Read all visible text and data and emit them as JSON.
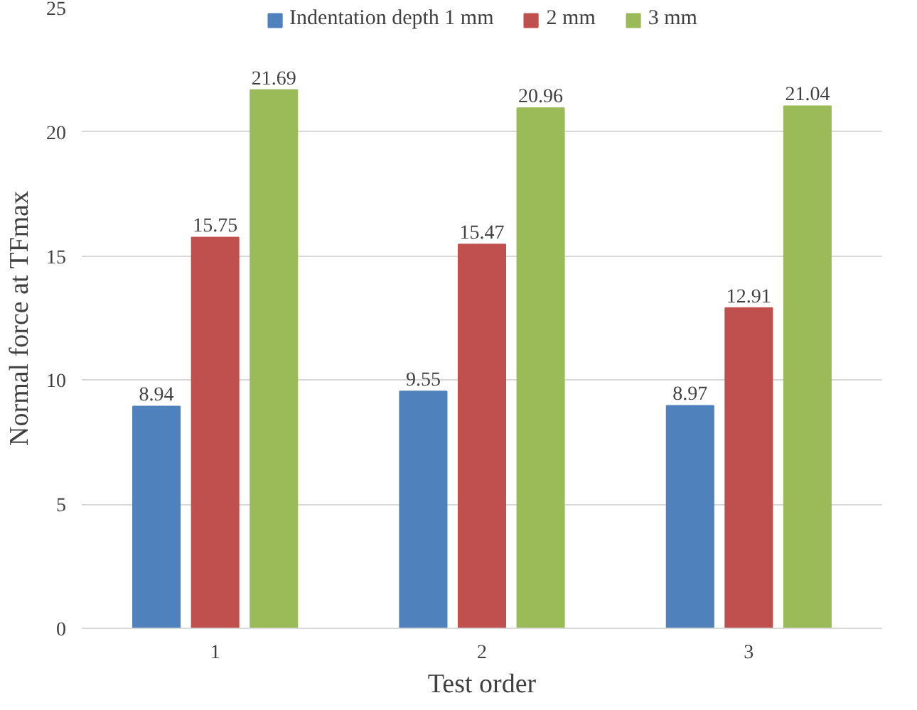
{
  "chart_data": {
    "type": "bar",
    "xlabel": "Test order",
    "ylabel": "Normal force at TFmax",
    "categories": [
      "1",
      "2",
      "3"
    ],
    "series": [
      {
        "name": "Indentation depth 1 mm",
        "color": "#4f81bd",
        "values": [
          8.94,
          9.55,
          8.97
        ]
      },
      {
        "name": "2 mm",
        "color": "#c0504d",
        "values": [
          15.75,
          15.47,
          12.91
        ]
      },
      {
        "name": "3 mm",
        "color": "#9bbb59",
        "values": [
          21.69,
          20.96,
          21.04
        ]
      }
    ],
    "ylim": [
      0,
      25
    ],
    "yticks": [
      0,
      5,
      10,
      15,
      20,
      25
    ],
    "grid": "y",
    "legend": "top",
    "data_labels": true
  }
}
